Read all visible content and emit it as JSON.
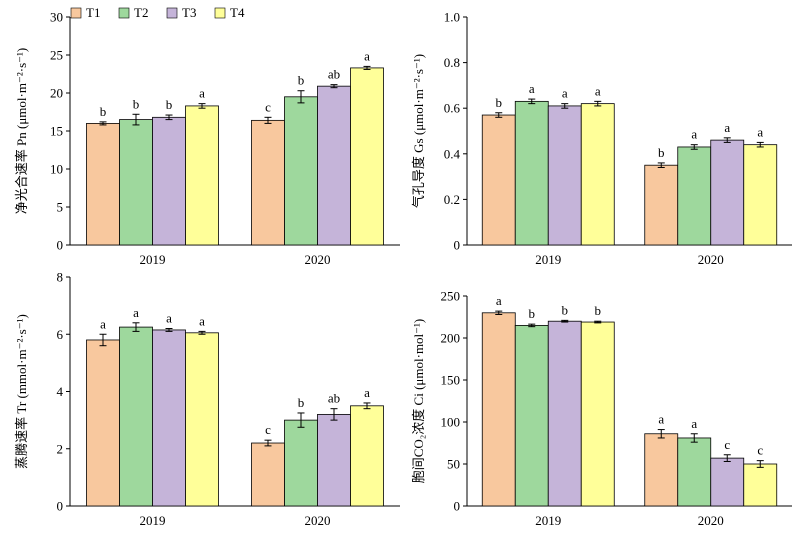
{
  "legend": {
    "items": [
      {
        "label": "T1",
        "color": "#F8C89E"
      },
      {
        "label": "T2",
        "color": "#9ED89D"
      },
      {
        "label": "T3",
        "color": "#C5B4D9"
      },
      {
        "label": "T4",
        "color": "#FFFF99"
      }
    ]
  },
  "chart_data": [
    {
      "type": "bar",
      "ylabel": "净光合速率 Pn (μmol·m⁻²·s⁻¹)",
      "ylim": [
        0,
        30
      ],
      "yticks": [
        "0",
        "5",
        "10",
        "15",
        "20",
        "25",
        "30"
      ],
      "categories": [
        "2019",
        "2020"
      ],
      "series": [
        {
          "name": "T1",
          "values": [
            16.0,
            16.4
          ],
          "errors": [
            0.2,
            0.4
          ],
          "letters": [
            "b",
            "c"
          ]
        },
        {
          "name": "T2",
          "values": [
            16.5,
            19.5
          ],
          "errors": [
            0.7,
            0.8
          ],
          "letters": [
            "b",
            "b"
          ]
        },
        {
          "name": "T3",
          "values": [
            16.8,
            20.9
          ],
          "errors": [
            0.3,
            0.2
          ],
          "letters": [
            "b",
            "ab"
          ]
        },
        {
          "name": "T4",
          "values": [
            18.3,
            23.3
          ],
          "errors": [
            0.3,
            0.2
          ],
          "letters": [
            "a",
            "a"
          ]
        }
      ]
    },
    {
      "type": "bar",
      "ylabel": "气孔导度 Gs (μmol·m⁻²·s⁻¹)",
      "ylim": [
        0,
        1.0
      ],
      "yticks": [
        "0",
        "0.2",
        "0.4",
        "0.6",
        "0.8",
        "1.0"
      ],
      "categories": [
        "2019",
        "2020"
      ],
      "series": [
        {
          "name": "T1",
          "values": [
            0.57,
            0.35
          ],
          "errors": [
            0.01,
            0.01
          ],
          "letters": [
            "b",
            "b"
          ]
        },
        {
          "name": "T2",
          "values": [
            0.63,
            0.43
          ],
          "errors": [
            0.01,
            0.01
          ],
          "letters": [
            "a",
            "a"
          ]
        },
        {
          "name": "T3",
          "values": [
            0.61,
            0.46
          ],
          "errors": [
            0.01,
            0.01
          ],
          "letters": [
            "a",
            "a"
          ]
        },
        {
          "name": "T4",
          "values": [
            0.62,
            0.44
          ],
          "errors": [
            0.01,
            0.01
          ],
          "letters": [
            "a",
            "a"
          ]
        }
      ]
    },
    {
      "type": "bar",
      "ylabel": "蒸腾速率 Tr (mmol·m⁻²·s⁻¹)",
      "ylim": [
        0,
        8
      ],
      "yticks": [
        "0",
        "2",
        "4",
        "6",
        "8"
      ],
      "categories": [
        "2019",
        "2020"
      ],
      "series": [
        {
          "name": "T1",
          "values": [
            5.8,
            2.2
          ],
          "errors": [
            0.2,
            0.1
          ],
          "letters": [
            "a",
            "c"
          ]
        },
        {
          "name": "T2",
          "values": [
            6.25,
            3.0
          ],
          "errors": [
            0.15,
            0.25
          ],
          "letters": [
            "a",
            "b"
          ]
        },
        {
          "name": "T3",
          "values": [
            6.15,
            3.2
          ],
          "errors": [
            0.05,
            0.2
          ],
          "letters": [
            "a",
            "ab"
          ]
        },
        {
          "name": "T4",
          "values": [
            6.05,
            3.5
          ],
          "errors": [
            0.05,
            0.1
          ],
          "letters": [
            "a",
            "a"
          ]
        }
      ]
    },
    {
      "type": "bar",
      "ylabel": "胞间CO₂浓度 Ci (μmol·mol⁻¹)",
      "ylim": [
        0,
        250
      ],
      "yticks": [
        "0",
        "50",
        "100",
        "150",
        "200",
        "250"
      ],
      "categories": [
        "2019",
        "2020"
      ],
      "series": [
        {
          "name": "T1",
          "values": [
            230,
            86
          ],
          "errors": [
            2,
            5
          ],
          "letters": [
            "a",
            "a"
          ]
        },
        {
          "name": "T2",
          "values": [
            215,
            81
          ],
          "errors": [
            1.5,
            5
          ],
          "letters": [
            "b",
            "a"
          ]
        },
        {
          "name": "T3",
          "values": [
            220,
            57
          ],
          "errors": [
            1,
            4
          ],
          "letters": [
            "b",
            "c"
          ]
        },
        {
          "name": "T4",
          "values": [
            219,
            50
          ],
          "errors": [
            1,
            4
          ],
          "letters": [
            "b",
            "c"
          ]
        }
      ]
    }
  ]
}
